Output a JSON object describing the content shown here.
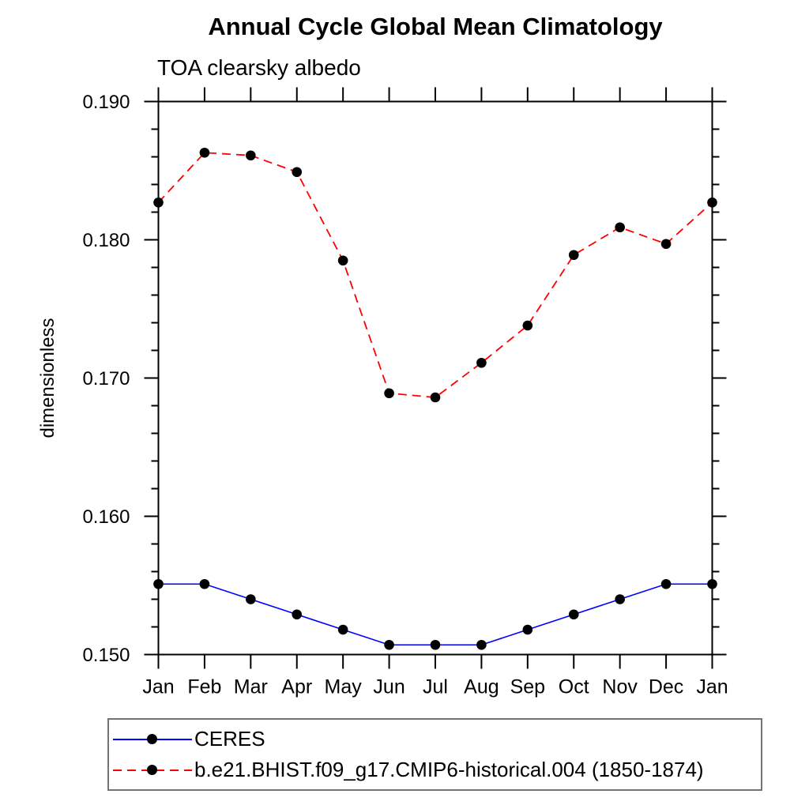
{
  "title": "Annual Cycle Global Mean Climatology",
  "subtitle": "TOA clearsky albedo",
  "chart_data": {
    "type": "line",
    "title": "Annual Cycle Global Mean Climatology",
    "subtitle": "TOA clearsky albedo",
    "xlabel": "",
    "ylabel": "dimensionless",
    "categories": [
      "Jan",
      "Feb",
      "Mar",
      "Apr",
      "May",
      "Jun",
      "Jul",
      "Aug",
      "Sep",
      "Oct",
      "Nov",
      "Dec",
      "Jan"
    ],
    "ylim": [
      0.15,
      0.19
    ],
    "ytick_major_step": 0.01,
    "ytick_minor_step": 0.002,
    "ytick_labels": [
      "0.150",
      "0.160",
      "0.170",
      "0.180",
      "0.190"
    ],
    "grid": false,
    "legend_position": "bottom-left",
    "axis_color": "#000000",
    "marker_shape": "circle",
    "series": [
      {
        "name": "CERES",
        "color": "#0000ff",
        "line_style": "solid",
        "marker_color": "#000000",
        "values": [
          0.1551,
          0.1551,
          0.154,
          0.1529,
          0.1518,
          0.1507,
          0.1507,
          0.1507,
          0.1518,
          0.1529,
          0.154,
          0.1551,
          0.1551
        ]
      },
      {
        "name": "b.e21.BHIST.f09_g17.CMIP6-historical.004 (1850-1874)",
        "color": "#ff0000",
        "line_style": "dashed",
        "marker_color": "#000000",
        "values": [
          0.1827,
          0.1863,
          0.1861,
          0.1849,
          0.1785,
          0.1689,
          0.1686,
          0.1711,
          0.1738,
          0.1789,
          0.1809,
          0.1797,
          0.1827
        ]
      }
    ]
  }
}
